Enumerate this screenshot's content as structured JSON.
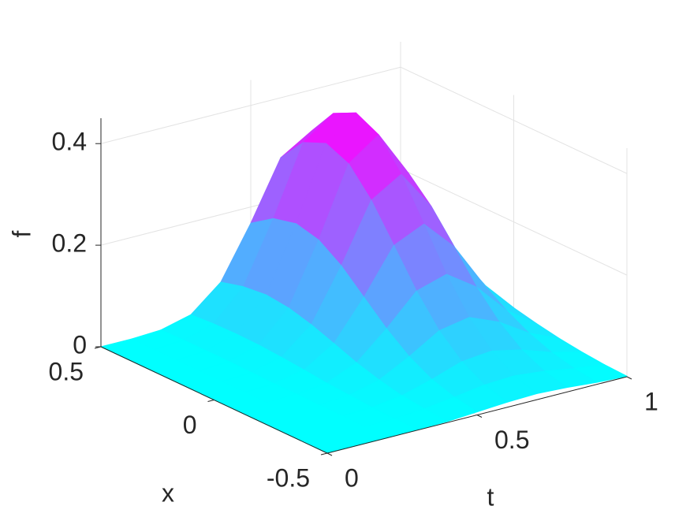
{
  "chart_data": {
    "type": "surface",
    "xlabel": "x",
    "ylabel": "t",
    "zlabel": "f",
    "x": [
      -0.5,
      -0.4,
      -0.3,
      -0.2,
      -0.1,
      0,
      0.1,
      0.2,
      0.3,
      0.4,
      0.5
    ],
    "y": [
      0,
      0.1,
      0.2,
      0.3,
      0.4,
      0.5,
      0.6,
      0.7,
      0.8,
      0.9,
      1
    ],
    "z": [
      [
        0,
        0,
        0,
        0.001,
        0.002,
        0.006,
        0.01,
        0.012,
        0.009,
        0.004,
        0.001
      ],
      [
        0,
        0,
        0,
        0.001,
        0.006,
        0.014,
        0.023,
        0.026,
        0.02,
        0.01,
        0.003
      ],
      [
        0,
        0,
        0.001,
        0.003,
        0.011,
        0.028,
        0.048,
        0.054,
        0.041,
        0.021,
        0.007
      ],
      [
        0,
        0,
        0.001,
        0.006,
        0.021,
        0.052,
        0.088,
        0.099,
        0.075,
        0.038,
        0.013
      ],
      [
        0,
        0,
        0.002,
        0.009,
        0.034,
        0.086,
        0.145,
        0.163,
        0.123,
        0.062,
        0.021
      ],
      [
        0,
        0,
        0.002,
        0.014,
        0.051,
        0.127,
        0.214,
        0.241,
        0.182,
        0.092,
        0.031
      ],
      [
        0,
        0,
        0.003,
        0.018,
        0.067,
        0.168,
        0.282,
        0.318,
        0.24,
        0.122,
        0.041
      ],
      [
        0,
        0,
        0.004,
        0.021,
        0.079,
        0.198,
        0.333,
        0.375,
        0.284,
        0.144,
        0.049
      ],
      [
        0,
        0,
        0.004,
        0.022,
        0.084,
        0.209,
        0.352,
        0.397,
        0.3,
        0.152,
        0.052
      ],
      [
        0,
        0,
        0.004,
        0.021,
        0.079,
        0.198,
        0.333,
        0.375,
        0.284,
        0.144,
        0.049
      ],
      [
        0,
        0,
        0.003,
        0.018,
        0.067,
        0.168,
        0.282,
        0.318,
        0.24,
        0.122,
        0.041
      ]
    ],
    "xlim": [
      -0.5,
      0.5
    ],
    "xticks": [
      -0.5,
      0,
      0.5
    ],
    "ylim": [
      0,
      1
    ],
    "yticks": [
      0,
      0.5,
      1
    ],
    "zlim": [
      0,
      0.45
    ],
    "zticks": [
      0,
      0.2,
      0.4
    ],
    "grid": true,
    "colormap": [
      "#00ffff",
      "#ff00ff"
    ]
  }
}
